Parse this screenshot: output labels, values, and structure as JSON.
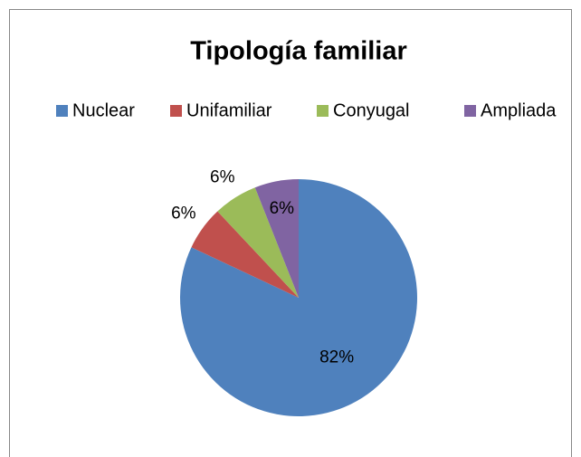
{
  "chart_data": {
    "type": "pie",
    "title": "Tipología familiar",
    "categories": [
      "Nuclear",
      "Unifamiliar",
      "Conyugal",
      "Ampliada"
    ],
    "values": [
      82,
      6,
      6,
      6
    ],
    "value_labels": [
      "82%",
      "6%",
      "6%",
      "6%"
    ],
    "colors": [
      "#4f81bd",
      "#c0504d",
      "#9bbb59",
      "#8064a2"
    ],
    "legend": "top"
  }
}
